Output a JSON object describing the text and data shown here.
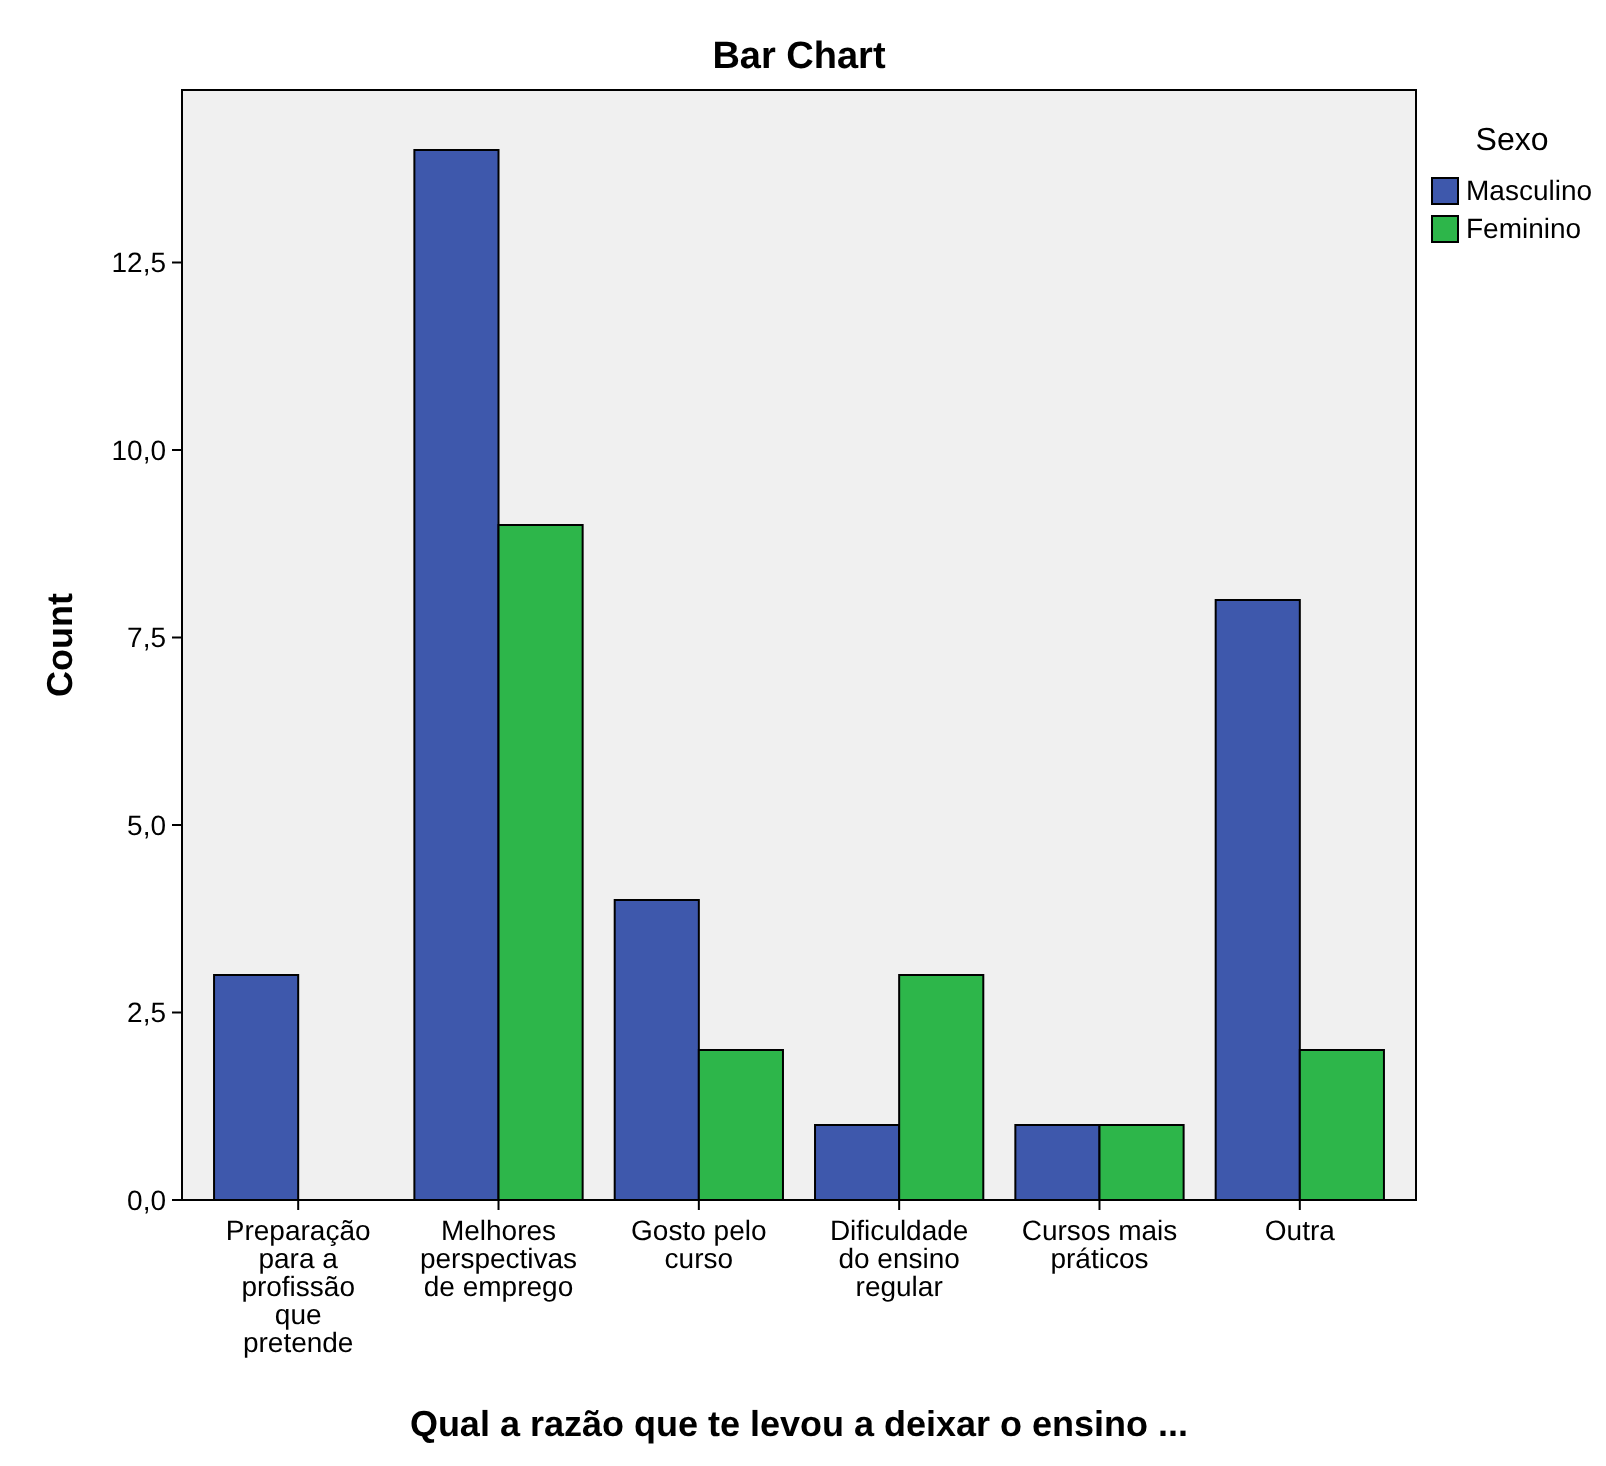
{
  "chart_data": {
    "type": "bar",
    "title": "Bar Chart",
    "xlabel": "Qual a razão que te levou a deixar o ensino ...",
    "ylabel": "Count",
    "legend_title": "Sexo",
    "legend": "top right",
    "grid": false,
    "categories": [
      "Preparação para a profissão que pretende",
      "Melhores perspectivas de emprego",
      "Gosto pelo curso",
      "Dificuldade do ensino regular",
      "Cursos mais práticos",
      "Outra"
    ],
    "series": [
      {
        "name": "Masculino",
        "color": "#3e58ac",
        "values": [
          3,
          14,
          4,
          1,
          1,
          8
        ]
      },
      {
        "name": "Feminino",
        "color": "#2db64a",
        "values": [
          0,
          9,
          2,
          3,
          1,
          2
        ]
      }
    ],
    "ylim": [
      0,
      14.8
    ],
    "yticks": [
      {
        "value": 0,
        "label": "0,0"
      },
      {
        "value": 2.5,
        "label": "2,5"
      },
      {
        "value": 5,
        "label": "5,0"
      },
      {
        "value": 7.5,
        "label": "7,5"
      },
      {
        "value": 10,
        "label": "10,0"
      },
      {
        "value": 12.5,
        "label": "12,5"
      }
    ]
  }
}
